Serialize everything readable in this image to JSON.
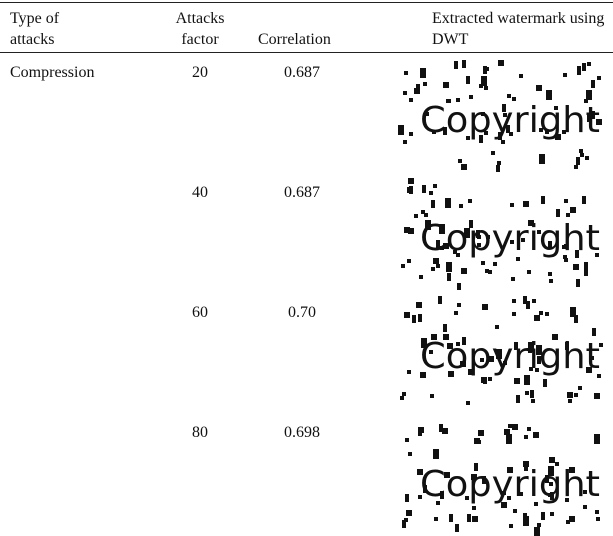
{
  "table": {
    "header": [
      "Type of attacks",
      "Attacks factor",
      "Correlation",
      "Extracted watermark using DWT"
    ],
    "rows": [
      [
        "Compression",
        "20",
        "0.687",
        "Copyright"
      ],
      [
        null,
        "40",
        "0.687",
        "Copyright"
      ],
      [
        null,
        "60",
        "0.70",
        "Copyright"
      ],
      [
        null,
        "80",
        "0.698",
        "Copyright"
      ]
    ]
  }
}
